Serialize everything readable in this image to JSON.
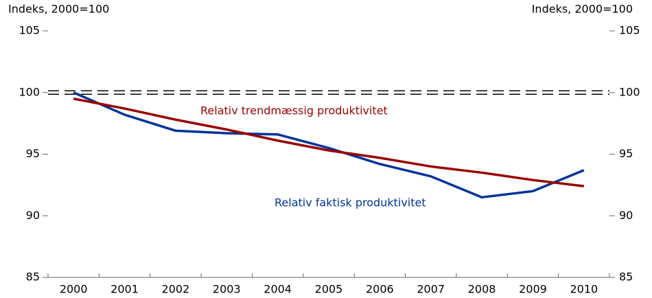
{
  "chart_data": {
    "type": "line",
    "y_label_left": "Indeks, 2000=100",
    "y_label_right": "Indeks, 2000=100",
    "categories": [
      "2000",
      "2001",
      "2002",
      "2003",
      "2004",
      "2005",
      "2006",
      "2007",
      "2008",
      "2009",
      "2010"
    ],
    "series": [
      {
        "name": "Relativ faktisk produktivitet",
        "color": "#003399",
        "values": [
          100,
          98.2,
          96.9,
          96.7,
          96.6,
          95.5,
          94.2,
          93.2,
          91.5,
          92.0,
          93.7
        ]
      },
      {
        "name": "Relativ trendmæssig produktivitet",
        "color": "#990000",
        "values": [
          99.5,
          98.7,
          97.8,
          97.0,
          96.1,
          95.3,
          94.7,
          94.0,
          93.5,
          92.9,
          92.4
        ]
      }
    ],
    "reference_line": 100,
    "ylim": [
      85,
      105
    ],
    "yticks": [
      85,
      90,
      95,
      100,
      105
    ]
  }
}
